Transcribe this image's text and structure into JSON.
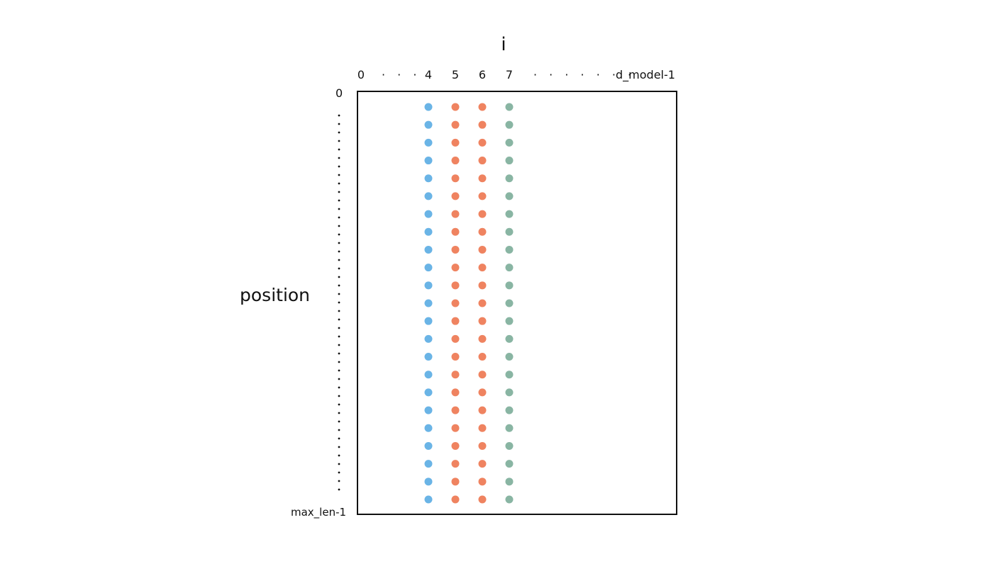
{
  "x_axis": {
    "title": "i",
    "tick_labels": [
      "0",
      "4",
      "5",
      "6",
      "7",
      "d_model-1"
    ],
    "ellipsis_left": "· · ·",
    "ellipsis_right": "· · · · · · ·"
  },
  "y_axis": {
    "title": "position",
    "start_label": "0",
    "end_label": "max_len-1"
  },
  "grid": {
    "rows_drawn": 23,
    "columns": [
      {
        "index": 4,
        "color": "#6ab4e6"
      },
      {
        "index": 5,
        "color": "#ef8360"
      },
      {
        "index": 6,
        "color": "#ef8360"
      },
      {
        "index": 7,
        "color": "#89b5a3"
      }
    ]
  },
  "colors": {
    "frame": "#111111",
    "blue": "#6ab4e6",
    "orange": "#ef8360",
    "green": "#89b5a3"
  }
}
